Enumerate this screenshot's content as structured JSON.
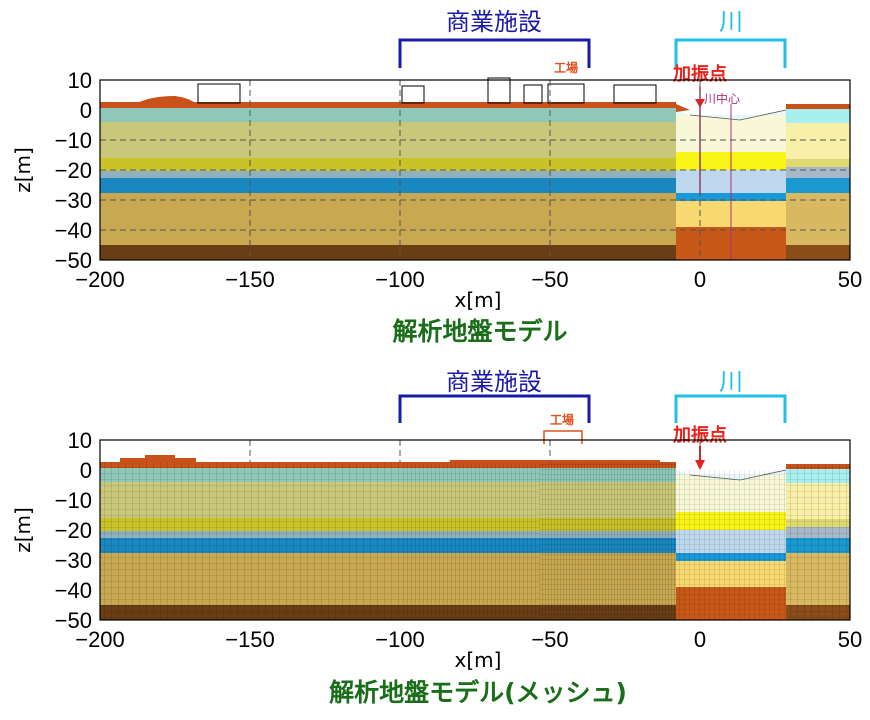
{
  "panels": [
    {
      "caption": "解析地盤モデル",
      "commercial_label": "商業施設",
      "river_label": "川",
      "factory_label": "工場",
      "excitation_label": "加振点",
      "river_center_label": "川中心",
      "xlabel": "x[m]",
      "ylabel": "z[m]"
    },
    {
      "caption": "解析地盤モデル(メッシュ)",
      "commercial_label": "商業施設",
      "river_label": "川",
      "factory_label": "工場",
      "excitation_label": "加振点",
      "xlabel": "x[m]",
      "ylabel": "z[m]"
    }
  ],
  "axes": {
    "x_ticks": [
      "−200",
      "−150",
      "−100",
      "−50",
      "0",
      "50"
    ],
    "y_ticks": [
      "10",
      "0",
      "−10",
      "−20",
      "−30",
      "−40",
      "−50"
    ],
    "xlim": [
      -200,
      50
    ],
    "ylim": [
      -50,
      10
    ]
  },
  "colors": {
    "surface_fill": "#c8521a",
    "caption": "#1a6e1a",
    "commercial": "#1a1aa8",
    "river": "#22c0e8",
    "excitation": "#e8221a",
    "factory": "#e0501a",
    "river_center": "#b0307a"
  }
}
